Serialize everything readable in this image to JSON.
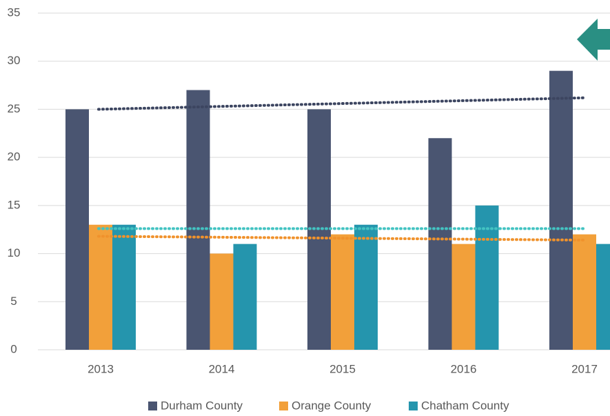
{
  "chart_data": {
    "type": "bar",
    "categories": [
      "2013",
      "2014",
      "2015",
      "2016",
      "2017"
    ],
    "series": [
      {
        "name": "Durham County",
        "color": "#4a5571",
        "trend_color": "#3c4560",
        "values": [
          25,
          27,
          25,
          22,
          29
        ]
      },
      {
        "name": "Orange County",
        "color": "#f2a03a",
        "trend_color": "#f0922c",
        "values": [
          13,
          10,
          12,
          11,
          12
        ]
      },
      {
        "name": "Chatham County",
        "color": "#2595ad",
        "trend_color": "#43c3c2",
        "values": [
          13,
          11,
          13,
          15,
          11
        ]
      }
    ],
    "ylim": [
      0,
      35
    ],
    "yticks": [
      0,
      5,
      10,
      15,
      20,
      25,
      30,
      35
    ],
    "grid": true,
    "trendline": true,
    "legend": "bottom"
  }
}
